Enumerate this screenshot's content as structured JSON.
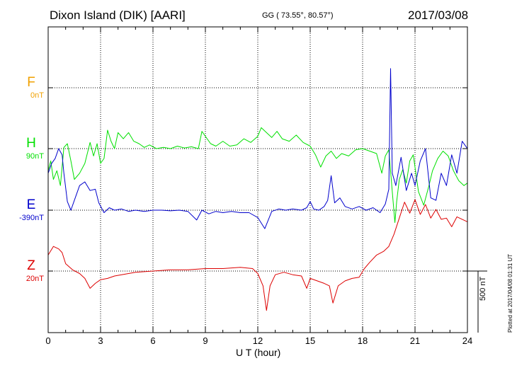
{
  "header": {
    "title": "Dixon Island (DIK)  [AARI]",
    "coordinates": "GG ( 73.55°,  80.57°)",
    "date": "2017/03/08"
  },
  "footer": {
    "plotted": "Plotted at 2017/04/08 01:31  UT"
  },
  "chart_data": {
    "type": "line",
    "xlabel": "U T (hour)",
    "xlim": [
      0,
      24
    ],
    "x_ticks": [
      "0",
      "3",
      "6",
      "9",
      "12",
      "15",
      "18",
      "21",
      "24"
    ],
    "scale_bar": "500 nT",
    "grid": true,
    "colors": {
      "F": "#f0a000",
      "H": "#00e000",
      "E": "#0000cc",
      "Z": "#dd0000"
    },
    "series": [
      {
        "name": "F",
        "baseline_label": "0nT",
        "points": []
      },
      {
        "name": "H",
        "baseline_label": "90nT",
        "points": [
          [
            0,
            -180
          ],
          [
            0.15,
            -100
          ],
          [
            0.3,
            -250
          ],
          [
            0.5,
            -180
          ],
          [
            0.7,
            -300
          ],
          [
            0.9,
            10
          ],
          [
            1.1,
            40
          ],
          [
            1.3,
            -100
          ],
          [
            1.5,
            -250
          ],
          [
            1.8,
            -200
          ],
          [
            2.1,
            -120
          ],
          [
            2.4,
            50
          ],
          [
            2.6,
            -60
          ],
          [
            2.8,
            40
          ],
          [
            3.0,
            -120
          ],
          [
            3.2,
            -80
          ],
          [
            3.4,
            150
          ],
          [
            3.6,
            60
          ],
          [
            3.8,
            0
          ],
          [
            4.0,
            130
          ],
          [
            4.3,
            80
          ],
          [
            4.6,
            130
          ],
          [
            4.9,
            60
          ],
          [
            5.2,
            40
          ],
          [
            5.5,
            10
          ],
          [
            5.8,
            30
          ],
          [
            6.2,
            0
          ],
          [
            6.6,
            10
          ],
          [
            7.0,
            0
          ],
          [
            7.4,
            20
          ],
          [
            7.8,
            5
          ],
          [
            8.2,
            15
          ],
          [
            8.6,
            0
          ],
          [
            8.8,
            140
          ],
          [
            9.0,
            100
          ],
          [
            9.3,
            40
          ],
          [
            9.6,
            20
          ],
          [
            10.0,
            60
          ],
          [
            10.4,
            20
          ],
          [
            10.8,
            30
          ],
          [
            11.2,
            80
          ],
          [
            11.6,
            50
          ],
          [
            12.0,
            100
          ],
          [
            12.2,
            170
          ],
          [
            12.5,
            130
          ],
          [
            12.8,
            90
          ],
          [
            13.1,
            140
          ],
          [
            13.4,
            80
          ],
          [
            13.8,
            60
          ],
          [
            14.2,
            110
          ],
          [
            14.6,
            50
          ],
          [
            15.0,
            20
          ],
          [
            15.3,
            -50
          ],
          [
            15.6,
            -150
          ],
          [
            15.9,
            -60
          ],
          [
            16.2,
            -20
          ],
          [
            16.5,
            -80
          ],
          [
            16.8,
            -40
          ],
          [
            17.2,
            -60
          ],
          [
            17.6,
            -10
          ],
          [
            18.0,
            0
          ],
          [
            18.4,
            -20
          ],
          [
            18.8,
            -40
          ],
          [
            19.1,
            -200
          ],
          [
            19.3,
            -60
          ],
          [
            19.5,
            -10
          ],
          [
            19.7,
            -350
          ],
          [
            19.85,
            -600
          ],
          [
            19.95,
            -430
          ],
          [
            20.1,
            -250
          ],
          [
            20.3,
            -170
          ],
          [
            20.5,
            -280
          ],
          [
            20.7,
            -100
          ],
          [
            20.9,
            -50
          ],
          [
            21.2,
            -350
          ],
          [
            21.5,
            -460
          ],
          [
            21.8,
            -300
          ],
          [
            22.0,
            -180
          ],
          [
            22.3,
            -80
          ],
          [
            22.6,
            -20
          ],
          [
            22.9,
            -60
          ],
          [
            23.2,
            -180
          ],
          [
            23.5,
            -260
          ],
          [
            23.8,
            -300
          ],
          [
            24.0,
            -280
          ]
        ]
      },
      {
        "name": "E",
        "baseline_label": "-390nT",
        "points": [
          [
            0,
            300
          ],
          [
            0.2,
            380
          ],
          [
            0.4,
            420
          ],
          [
            0.6,
            500
          ],
          [
            0.8,
            450
          ],
          [
            0.9,
            300
          ],
          [
            1.1,
            70
          ],
          [
            1.3,
            0
          ],
          [
            1.5,
            80
          ],
          [
            1.8,
            200
          ],
          [
            2.1,
            230
          ],
          [
            2.4,
            160
          ],
          [
            2.7,
            170
          ],
          [
            2.9,
            60
          ],
          [
            3.2,
            -20
          ],
          [
            3.5,
            20
          ],
          [
            3.8,
            0
          ],
          [
            4.2,
            10
          ],
          [
            4.6,
            -10
          ],
          [
            5.0,
            0
          ],
          [
            5.5,
            -10
          ],
          [
            6.0,
            0
          ],
          [
            6.5,
            0
          ],
          [
            7.0,
            -5
          ],
          [
            7.5,
            0
          ],
          [
            8.0,
            -10
          ],
          [
            8.5,
            -80
          ],
          [
            8.8,
            0
          ],
          [
            9.2,
            -30
          ],
          [
            9.6,
            -10
          ],
          [
            10.0,
            -20
          ],
          [
            10.5,
            -10
          ],
          [
            11.0,
            -20
          ],
          [
            11.5,
            -20
          ],
          [
            12.0,
            -60
          ],
          [
            12.4,
            -150
          ],
          [
            12.8,
            -10
          ],
          [
            13.2,
            10
          ],
          [
            13.6,
            0
          ],
          [
            14.0,
            10
          ],
          [
            14.5,
            0
          ],
          [
            14.8,
            20
          ],
          [
            15.0,
            70
          ],
          [
            15.2,
            10
          ],
          [
            15.5,
            0
          ],
          [
            15.8,
            30
          ],
          [
            16.0,
            80
          ],
          [
            16.2,
            280
          ],
          [
            16.4,
            60
          ],
          [
            16.7,
            100
          ],
          [
            17.0,
            30
          ],
          [
            17.4,
            10
          ],
          [
            17.8,
            30
          ],
          [
            18.2,
            0
          ],
          [
            18.6,
            20
          ],
          [
            19.0,
            -20
          ],
          [
            19.3,
            50
          ],
          [
            19.5,
            170
          ],
          [
            19.6,
            1150
          ],
          [
            19.7,
            300
          ],
          [
            19.9,
            200
          ],
          [
            20.2,
            430
          ],
          [
            20.5,
            160
          ],
          [
            20.8,
            300
          ],
          [
            21.0,
            200
          ],
          [
            21.3,
            400
          ],
          [
            21.6,
            500
          ],
          [
            21.9,
            100
          ],
          [
            22.2,
            80
          ],
          [
            22.5,
            300
          ],
          [
            22.8,
            200
          ],
          [
            23.1,
            450
          ],
          [
            23.4,
            300
          ],
          [
            23.7,
            560
          ],
          [
            24.0,
            500
          ]
        ]
      },
      {
        "name": "Z",
        "baseline_label": "20nT",
        "points": [
          [
            0,
            130
          ],
          [
            0.3,
            200
          ],
          [
            0.6,
            180
          ],
          [
            0.8,
            150
          ],
          [
            1.0,
            60
          ],
          [
            1.4,
            10
          ],
          [
            1.8,
            -20
          ],
          [
            2.1,
            -60
          ],
          [
            2.4,
            -140
          ],
          [
            2.7,
            -100
          ],
          [
            3.0,
            -70
          ],
          [
            3.4,
            -60
          ],
          [
            3.8,
            -40
          ],
          [
            4.2,
            -30
          ],
          [
            4.6,
            -20
          ],
          [
            5.0,
            -10
          ],
          [
            5.5,
            -5
          ],
          [
            6.0,
            0
          ],
          [
            7.0,
            10
          ],
          [
            8.0,
            10
          ],
          [
            9.0,
            20
          ],
          [
            10.0,
            20
          ],
          [
            11.0,
            30
          ],
          [
            11.7,
            20
          ],
          [
            12.0,
            -20
          ],
          [
            12.3,
            -120
          ],
          [
            12.5,
            -320
          ],
          [
            12.7,
            -120
          ],
          [
            13.0,
            -30
          ],
          [
            13.5,
            -10
          ],
          [
            14.0,
            -30
          ],
          [
            14.5,
            -40
          ],
          [
            14.8,
            -140
          ],
          [
            15.0,
            -60
          ],
          [
            15.4,
            -80
          ],
          [
            15.8,
            -100
          ],
          [
            16.1,
            -120
          ],
          [
            16.3,
            -260
          ],
          [
            16.6,
            -120
          ],
          [
            17.0,
            -80
          ],
          [
            17.4,
            -60
          ],
          [
            17.8,
            -50
          ],
          [
            18.1,
            20
          ],
          [
            18.4,
            70
          ],
          [
            18.8,
            130
          ],
          [
            19.2,
            160
          ],
          [
            19.5,
            200
          ],
          [
            19.8,
            300
          ],
          [
            20.1,
            430
          ],
          [
            20.4,
            560
          ],
          [
            20.7,
            470
          ],
          [
            21.0,
            580
          ],
          [
            21.3,
            460
          ],
          [
            21.6,
            540
          ],
          [
            21.9,
            430
          ],
          [
            22.2,
            500
          ],
          [
            22.5,
            420
          ],
          [
            22.8,
            430
          ],
          [
            23.1,
            360
          ],
          [
            23.4,
            440
          ],
          [
            23.7,
            420
          ],
          [
            24.0,
            400
          ]
        ]
      }
    ]
  }
}
